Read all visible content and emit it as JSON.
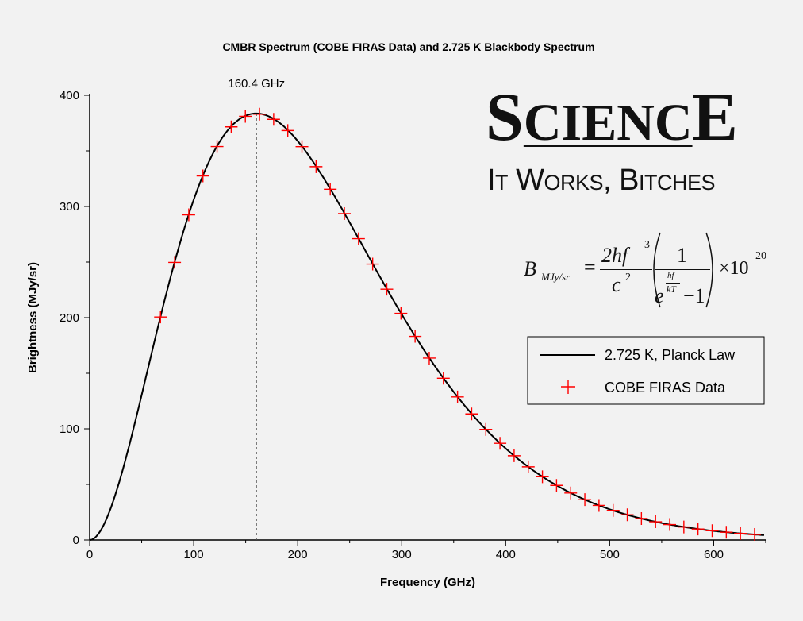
{
  "chart_data": {
    "type": "line",
    "title": "CMBR Spectrum (COBE FIRAS Data) and 2.725 K Blackbody Spectrum",
    "xlabel": "Frequency (GHz)",
    "ylabel": "Brightness (MJy/sr)",
    "xlim": [
      0,
      650
    ],
    "ylim": [
      0,
      400
    ],
    "xticks": [
      0,
      100,
      200,
      300,
      400,
      500,
      600
    ],
    "yticks": [
      0,
      100,
      200,
      300,
      400
    ],
    "grid": false,
    "legend_position": "right",
    "peak_annotation": {
      "x": 160.4,
      "label": "160.4 GHz"
    },
    "series": [
      {
        "name": "2.725 K, Planck Law",
        "kind": "line",
        "color": "#000000",
        "temperature_K": 2.725,
        "x_range": [
          0,
          650
        ]
      },
      {
        "name": "COBE FIRAS Data",
        "kind": "scatter",
        "marker": "plus",
        "color": "#ff0000",
        "x": [
          68.1,
          81.7,
          95.3,
          108.9,
          122.5,
          136.1,
          149.7,
          163.3,
          176.9,
          190.5,
          204.1,
          217.7,
          231.3,
          244.9,
          258.5,
          272.1,
          285.7,
          299.3,
          312.9,
          326.5,
          340.1,
          353.7,
          367.3,
          380.9,
          394.5,
          408.1,
          421.7,
          435.3,
          448.9,
          462.5,
          476.1,
          489.7,
          503.3,
          516.9,
          530.5,
          544.1,
          557.7,
          571.3,
          584.9,
          598.5,
          612.1,
          625.7,
          639.3
        ],
        "y": [
          200.6,
          249.7,
          292.5,
          327.5,
          353.9,
          371.6,
          381.1,
          383.0,
          378.4,
          368.3,
          353.8,
          335.8,
          315.5,
          293.6,
          271.0,
          248.2,
          225.6,
          203.9,
          183.2,
          163.6,
          145.5,
          128.7,
          113.4,
          99.5,
          87.0,
          75.8,
          65.8,
          56.9,
          49.1,
          42.3,
          36.3,
          31.1,
          26.6,
          22.7,
          19.3,
          16.4,
          13.9,
          11.7,
          9.9,
          8.4,
          7.0,
          5.9,
          5.0
        ]
      }
    ]
  },
  "overlay": {
    "science": {
      "s1": "S",
      "mid": "CIENC",
      "s2": "E"
    },
    "tagline": "It Works, Bitches",
    "formula": {
      "B": "B",
      "sub": "MJy/sr",
      "eq": "=",
      "num": "2hf",
      "num_exp": "3",
      "den": "c",
      "den_exp": "2",
      "one": "1",
      "e": "e",
      "hf": "hf",
      "kT": "kT",
      "minus1": "−1",
      "times": "×10",
      "exp20": "20"
    }
  }
}
